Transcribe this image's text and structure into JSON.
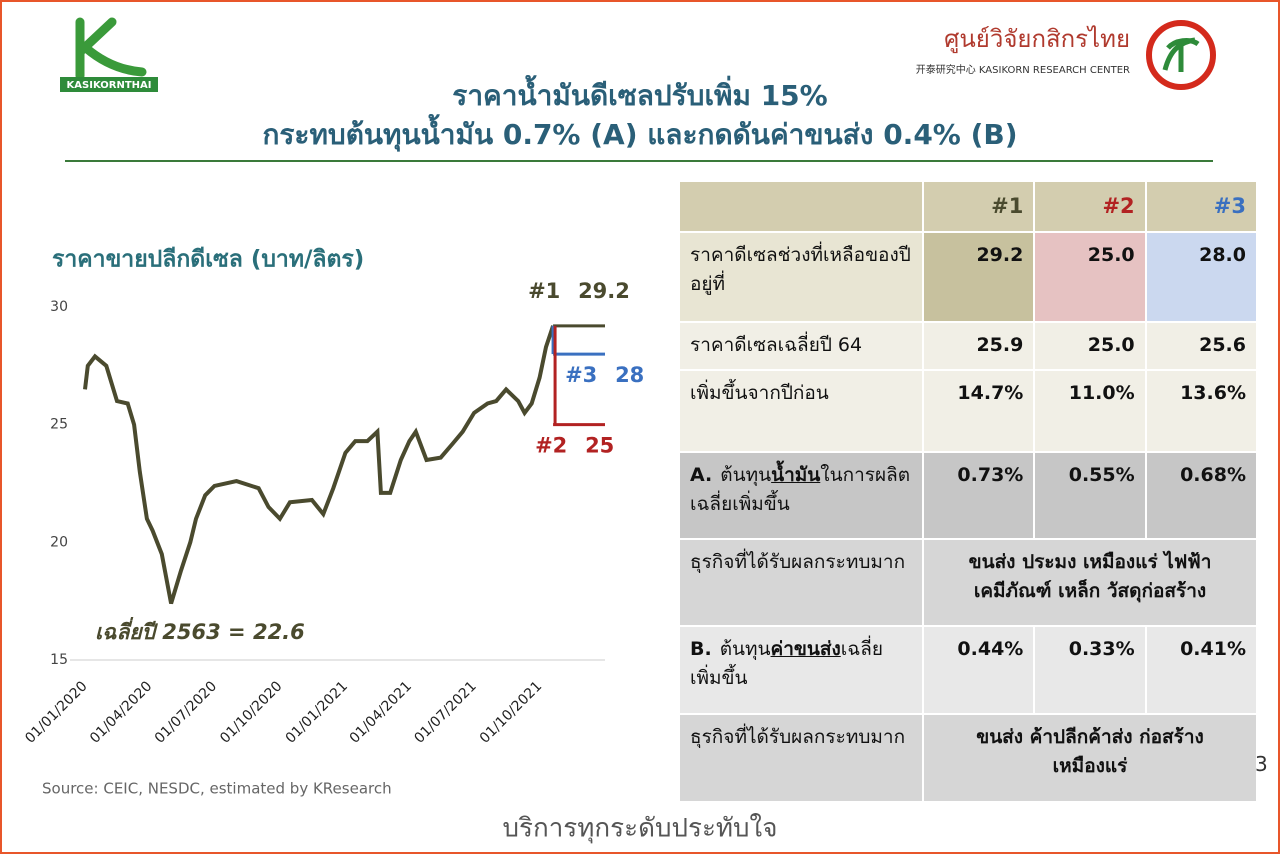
{
  "header": {
    "logo_left": "KASIKORNTHAI",
    "logo_right_th": "ศูนย์วิจัยกสิกรไทย",
    "logo_right_en": "开泰研究中心 KASIKORN RESEARCH CENTER",
    "title_line1": "ราคาน้ำมันดีเซลปรับเพิ่ม 15%",
    "title_line2": "กระทบต้นทุนน้ำมัน 0.7% (A) และกดดันค่าขนส่ง 0.4% (B)"
  },
  "chart_data": {
    "type": "line",
    "title": "ราคาขายปลีกดีเซล (บาท/ลิตร)",
    "color": "#4a4a2e",
    "x": [
      "01/01/2020",
      "05/01/2020",
      "15/01/2020",
      "31/01/2020",
      "15/02/2020",
      "01/03/2020",
      "10/03/2020",
      "18/03/2020",
      "28/03/2020",
      "05/04/2020",
      "18/04/2020",
      "01/05/2020",
      "15/05/2020",
      "28/05/2020",
      "05/06/2020",
      "18/06/2020",
      "01/07/2020",
      "01/08/2020",
      "01/09/2020",
      "15/09/2020",
      "01/10/2020",
      "15/10/2020",
      "15/11/2020",
      "01/12/2020",
      "15/12/2020",
      "01/01/2021",
      "15/01/2021",
      "01/02/2021",
      "15/02/2021",
      "20/02/2021",
      "05/03/2021",
      "20/03/2021",
      "01/04/2021",
      "10/04/2021",
      "25/04/2021",
      "15/05/2021",
      "01/06/2021",
      "15/06/2021",
      "01/07/2021",
      "20/07/2021",
      "01/08/2021",
      "15/08/2021",
      "01/09/2021",
      "10/09/2021",
      "20/09/2021",
      "01/10/2021",
      "10/10/2021",
      "20/10/2021"
    ],
    "values": [
      26.5,
      27.5,
      27.9,
      27.5,
      26.0,
      25.9,
      25.0,
      23.0,
      21.0,
      20.5,
      19.5,
      17.4,
      18.8,
      20.0,
      21.0,
      22.0,
      22.4,
      22.6,
      22.3,
      21.5,
      21.0,
      21.7,
      21.8,
      21.2,
      22.3,
      23.8,
      24.3,
      24.3,
      24.7,
      22.1,
      22.1,
      23.5,
      24.3,
      24.7,
      23.5,
      23.6,
      24.2,
      24.7,
      25.5,
      25.9,
      26.0,
      26.5,
      26.0,
      25.5,
      25.9,
      27.0,
      28.3,
      29.2
    ],
    "xlim": [
      "01/01/2020",
      "01/01/2022"
    ],
    "xticks": [
      "01/01/2020",
      "01/04/2020",
      "01/07/2020",
      "01/10/2020",
      "01/01/2021",
      "01/04/2021",
      "01/07/2021",
      "01/10/2021"
    ],
    "ylim": [
      15,
      30
    ],
    "yticks": [
      15,
      20,
      25,
      30
    ],
    "projections": [
      {
        "label": "#1",
        "value": 29.2,
        "color": "#4a4a2e"
      },
      {
        "label": "#3",
        "value": 28.0,
        "color": "#3a70c0"
      },
      {
        "label": "#2",
        "value": 25.0,
        "color": "#b22222"
      }
    ],
    "annotation": "เฉลี่ยปี 2563 = 22.6",
    "source": "Source: CEIC, NESDC, estimated by KResearch"
  },
  "table": {
    "columns": [
      "#1",
      "#2",
      "#3"
    ],
    "rows": [
      {
        "label": [
          "ราคาดีเซลช่วงที่เหลือของปี อยู่ที่"
        ],
        "cells": [
          "29.2",
          "25.0",
          "28.0"
        ]
      },
      {
        "label": [
          "ราคาดีเซลเฉลี่ยปี 64"
        ],
        "cells": [
          "25.9",
          "25.0",
          "25.6"
        ]
      },
      {
        "label": [
          "เพิ่มขึ้นจากปีก่อน"
        ],
        "cells": [
          "14.7%",
          "11.0%",
          "13.6%"
        ]
      },
      {
        "label": [
          "A.",
          "ต้นทุน",
          "น้ำมัน",
          "ในการผลิตเฉลี่ยเพิ่มขึ้น"
        ],
        "cells": [
          "0.73%",
          "0.55%",
          "0.68%"
        ]
      },
      {
        "label": [
          "ธุรกิจที่ได้รับผลกระทบมาก"
        ],
        "merged": "ขนส่ง ประมง เหมืองแร่ ไฟฟ้า เคมีภัณฑ์ เหล็ก วัสดุก่อสร้าง"
      },
      {
        "label": [
          "B.",
          "ต้นทุน",
          "ค่าขนส่ง",
          "เฉลี่ยเพิ่มขึ้น"
        ],
        "cells": [
          "0.44%",
          "0.33%",
          "0.41%"
        ]
      },
      {
        "label": [
          "ธุรกิจที่ได้รับผลกระทบมาก"
        ],
        "merged": "ขนส่ง ค้าปลีกค้าส่ง ก่อสร้าง เหมืองแร่"
      }
    ]
  },
  "page_number": "3",
  "footer": "บริการทุกระดับประทับใจ"
}
